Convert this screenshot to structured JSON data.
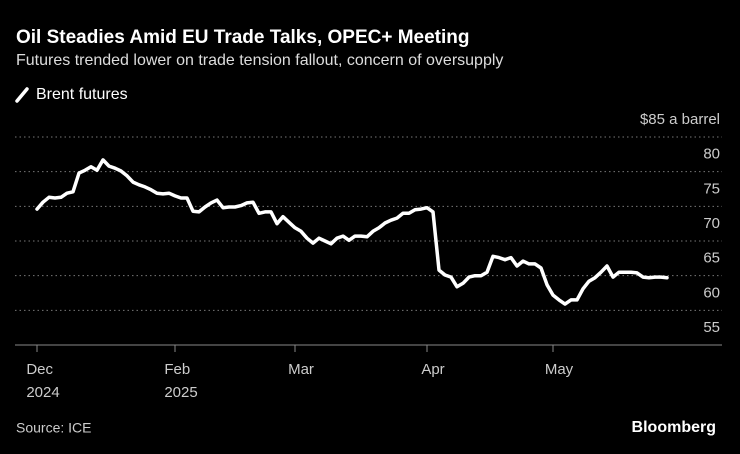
{
  "chart_data": {
    "type": "line",
    "title": "Oil Steadies Amid EU Trade Talks, OPEC+ Meeting",
    "subtitle": "Futures trended lower on trade tension fallout, concern of oversupply",
    "source": "Source: ICE",
    "brand": "Bloomberg",
    "categories": [
      "Dec\n2024",
      null,
      null,
      null,
      null,
      null,
      null,
      null,
      null,
      null,
      null,
      null,
      null,
      null,
      null,
      null,
      null,
      null,
      null,
      null,
      null,
      null,
      null,
      "Feb\n2025",
      null,
      null,
      null,
      null,
      null,
      null,
      null,
      null,
      null,
      null,
      null,
      null,
      null,
      null,
      null,
      null,
      null,
      null,
      null,
      "Mar",
      null,
      null,
      null,
      null,
      null,
      null,
      null,
      null,
      null,
      null,
      null,
      null,
      null,
      null,
      null,
      null,
      null,
      null,
      null,
      null,
      null,
      "Apr",
      null,
      null,
      null,
      null,
      null,
      null,
      null,
      null,
      null,
      null,
      null,
      null,
      null,
      null,
      null,
      null,
      null,
      null,
      null,
      null,
      "May",
      null,
      null,
      null,
      null,
      null,
      null,
      null,
      null,
      null,
      null,
      null,
      null,
      null,
      null,
      null,
      null,
      null,
      null,
      null
    ],
    "series": [
      {
        "name": "Brent futures",
        "color": "#ffffff",
        "values": [
          74.6,
          75.6,
          76.3,
          76.2,
          76.3,
          76.9,
          77.1,
          79.8,
          80.2,
          80.7,
          80.2,
          81.7,
          80.8,
          80.5,
          80.1,
          79.4,
          78.5,
          78.1,
          77.8,
          77.4,
          76.9,
          76.8,
          76.9,
          76.5,
          76.2,
          76.2,
          74.3,
          74.2,
          74.9,
          75.5,
          75.9,
          74.8,
          74.9,
          74.9,
          75.1,
          75.5,
          75.6,
          74.0,
          74.2,
          74.2,
          72.5,
          73.5,
          72.7,
          71.9,
          71.4,
          70.4,
          69.7,
          70.4,
          70.0,
          69.6,
          70.4,
          70.7,
          70.1,
          70.7,
          70.7,
          70.6,
          71.4,
          71.9,
          72.6,
          73.0,
          73.3,
          74.0,
          74.0,
          74.5,
          74.6,
          74.8,
          74.2,
          65.8,
          65.1,
          64.8,
          63.4,
          63.9,
          64.8,
          65.0,
          65.0,
          65.5,
          67.8,
          67.6,
          67.3,
          67.6,
          66.4,
          67.1,
          66.7,
          66.7,
          66.1,
          63.7,
          62.2,
          61.5,
          60.9,
          61.5,
          61.5,
          63.1,
          64.2,
          64.7,
          65.5,
          66.4,
          64.8,
          65.5,
          65.5,
          65.5,
          65.4,
          64.8,
          64.7,
          64.8,
          64.8,
          64.7
        ]
      }
    ],
    "ylim": [
      55,
      85
    ],
    "yticks": [
      55,
      60,
      65,
      70,
      75,
      80,
      {
        "value": 85,
        "label": "$85 a barrel"
      }
    ],
    "grid": true
  }
}
